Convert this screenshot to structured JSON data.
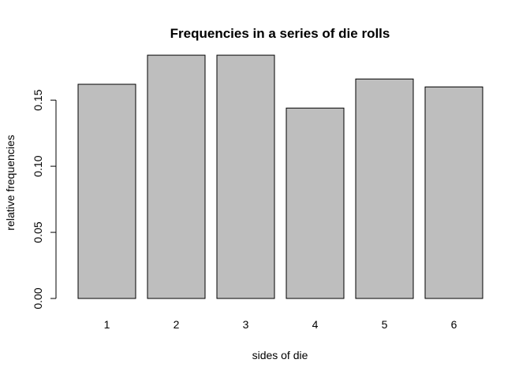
{
  "chart_data": {
    "type": "bar",
    "title": "Frequencies in a series of die rolls",
    "xlabel": "sides of die",
    "ylabel": "relative frequencies",
    "categories": [
      "1",
      "2",
      "3",
      "4",
      "5",
      "6"
    ],
    "values": [
      0.162,
      0.184,
      0.184,
      0.144,
      0.166,
      0.16
    ],
    "ylim": [
      0,
      0.19
    ],
    "yticks": [
      {
        "value": 0,
        "label": "0.00"
      },
      {
        "value": 0.05,
        "label": "0.05"
      },
      {
        "value": 0.1,
        "label": "0.10"
      },
      {
        "value": 0.15,
        "label": "0.15"
      }
    ],
    "bar_fill": "#bebebe",
    "grid": false,
    "legend": "none"
  }
}
